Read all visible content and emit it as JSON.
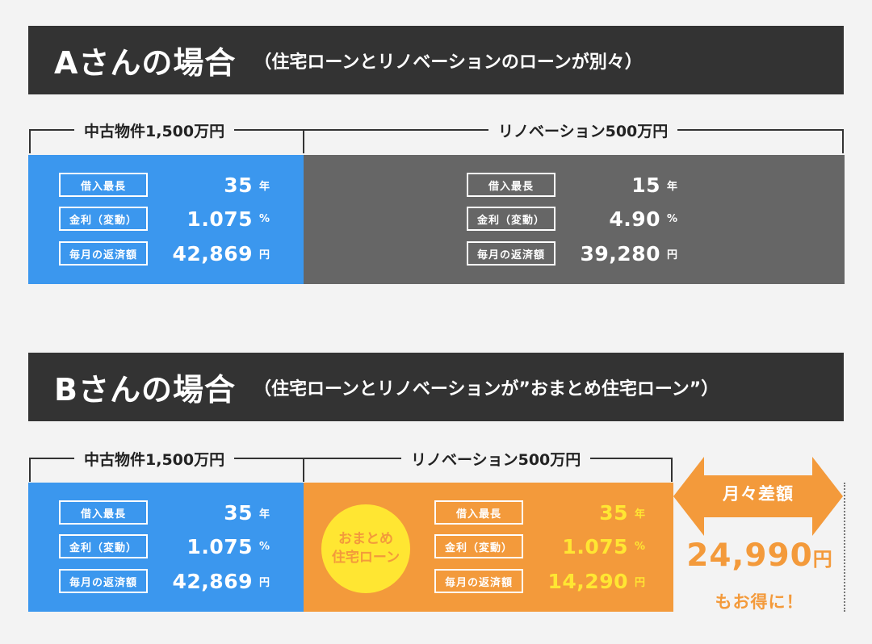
{
  "caseA": {
    "title": "Aさんの場合",
    "subtitle": "（住宅ローンとリノベーションのローンが別々）",
    "left_label": "中古物件1,500万円",
    "right_label": "リノベーション500万円",
    "housing": {
      "rows": [
        {
          "tag": "借入最長",
          "value": "35",
          "unit": "年"
        },
        {
          "tag": "金利（変動）",
          "value": "1.075",
          "unit": "%"
        },
        {
          "tag": "毎月の返済額",
          "value": "42,869",
          "unit": "円"
        }
      ]
    },
    "renovation": {
      "rows": [
        {
          "tag": "借入最長",
          "value": "15",
          "unit": "年"
        },
        {
          "tag": "金利（変動）",
          "value": "4.90",
          "unit": "%"
        },
        {
          "tag": "毎月の返済額",
          "value": "39,280",
          "unit": "円"
        }
      ]
    }
  },
  "caseB": {
    "title": "Bさんの場合",
    "subtitle": "（住宅ローンとリノベーションが”おまとめ住宅ローン”）",
    "left_label": "中古物件1,500万円",
    "right_label": "リノベーション500万円",
    "housing": {
      "rows": [
        {
          "tag": "借入最長",
          "value": "35",
          "unit": "年"
        },
        {
          "tag": "金利（変動）",
          "value": "1.075",
          "unit": "%"
        },
        {
          "tag": "毎月の返済額",
          "value": "42,869",
          "unit": "円"
        }
      ]
    },
    "renovation": {
      "badge_line1": "おまとめ",
      "badge_line2": "住宅ローン",
      "rows": [
        {
          "tag": "借入最長",
          "value": "35",
          "unit": "年"
        },
        {
          "tag": "金利（変動）",
          "value": "1.075",
          "unit": "%"
        },
        {
          "tag": "毎月の返済額",
          "value": "14,290",
          "unit": "円"
        }
      ]
    },
    "difference": {
      "label": "月々差額",
      "value": "24,990",
      "unit": "円",
      "note": "もお得に！"
    }
  },
  "colors": {
    "header": "#333333",
    "blue": "#3b97ee",
    "gray": "#666666",
    "orange": "#f39a3b",
    "yellow": "#ffe632"
  }
}
